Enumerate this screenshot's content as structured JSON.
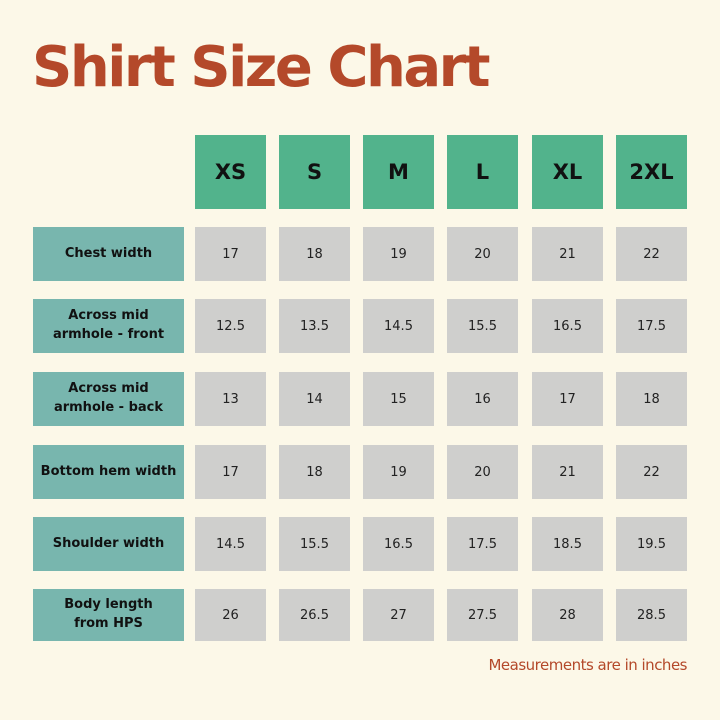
{
  "title": "Shirt Size Chart",
  "sizes": [
    "XS",
    "S",
    "M",
    "L",
    "XL",
    "2XL"
  ],
  "rows": [
    {
      "label": "Chest width",
      "values": [
        "17",
        "18",
        "19",
        "20",
        "21",
        "22"
      ]
    },
    {
      "label": "Across mid\narmhole - front",
      "values": [
        "12.5",
        "13.5",
        "14.5",
        "15.5",
        "16.5",
        "17.5"
      ]
    },
    {
      "label": "Across mid\narmhole - back",
      "values": [
        "13",
        "14",
        "15",
        "16",
        "17",
        "18"
      ]
    },
    {
      "label": "Bottom hem width",
      "values": [
        "17",
        "18",
        "19",
        "20",
        "21",
        "22"
      ]
    },
    {
      "label": "Shoulder width",
      "values": [
        "14.5",
        "15.5",
        "16.5",
        "17.5",
        "18.5",
        "19.5"
      ]
    },
    {
      "label": "Body length\nfrom HPS",
      "values": [
        "26",
        "26.5",
        "27",
        "27.5",
        "28",
        "28.5"
      ]
    }
  ],
  "note": "Measurements are in inches",
  "colors": {
    "background": "#fcf8e8",
    "title": "#b4492a",
    "size_header": "#52b38c",
    "row_label": "#78b6ae",
    "cell": "#cfcfcd"
  }
}
